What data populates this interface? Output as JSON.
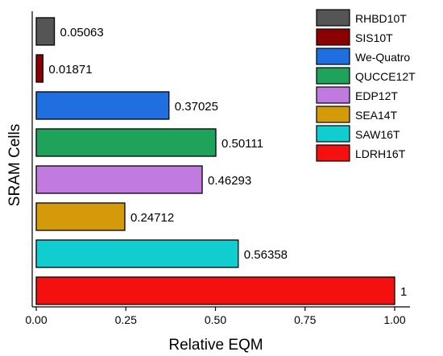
{
  "chart_data": {
    "type": "bar",
    "orientation": "horizontal",
    "xlabel": "Relative EQM",
    "ylabel": "SRAM Cells",
    "xlim": [
      0,
      1.05
    ],
    "xticks": [
      "0.00",
      "0.25",
      "0.50",
      "0.75",
      "1.00"
    ],
    "grid": false,
    "legend_position": "top-right",
    "series": [
      {
        "name": "RHBD10T",
        "value": 0.05063,
        "label": "0.05063",
        "color": "#555555"
      },
      {
        "name": "SIS10T",
        "value": 0.01871,
        "label": "0.01871",
        "color": "#8b0000"
      },
      {
        "name": "We-Quatro",
        "value": 0.37025,
        "label": "0.37025",
        "color": "#1f6fe0"
      },
      {
        "name": "QUCCE12T",
        "value": 0.50111,
        "label": "0.50111",
        "color": "#1fa35a"
      },
      {
        "name": "EDP12T",
        "value": 0.46293,
        "label": "0.46293",
        "color": "#c07ae0"
      },
      {
        "name": "SEA14T",
        "value": 0.24712,
        "label": "0.24712",
        "color": "#d49a0a"
      },
      {
        "name": "SAW16T",
        "value": 0.56358,
        "label": "0.56358",
        "color": "#10cdd0"
      },
      {
        "name": "LDRH16T",
        "value": 1,
        "label": "1",
        "color": "#f51010"
      }
    ]
  }
}
